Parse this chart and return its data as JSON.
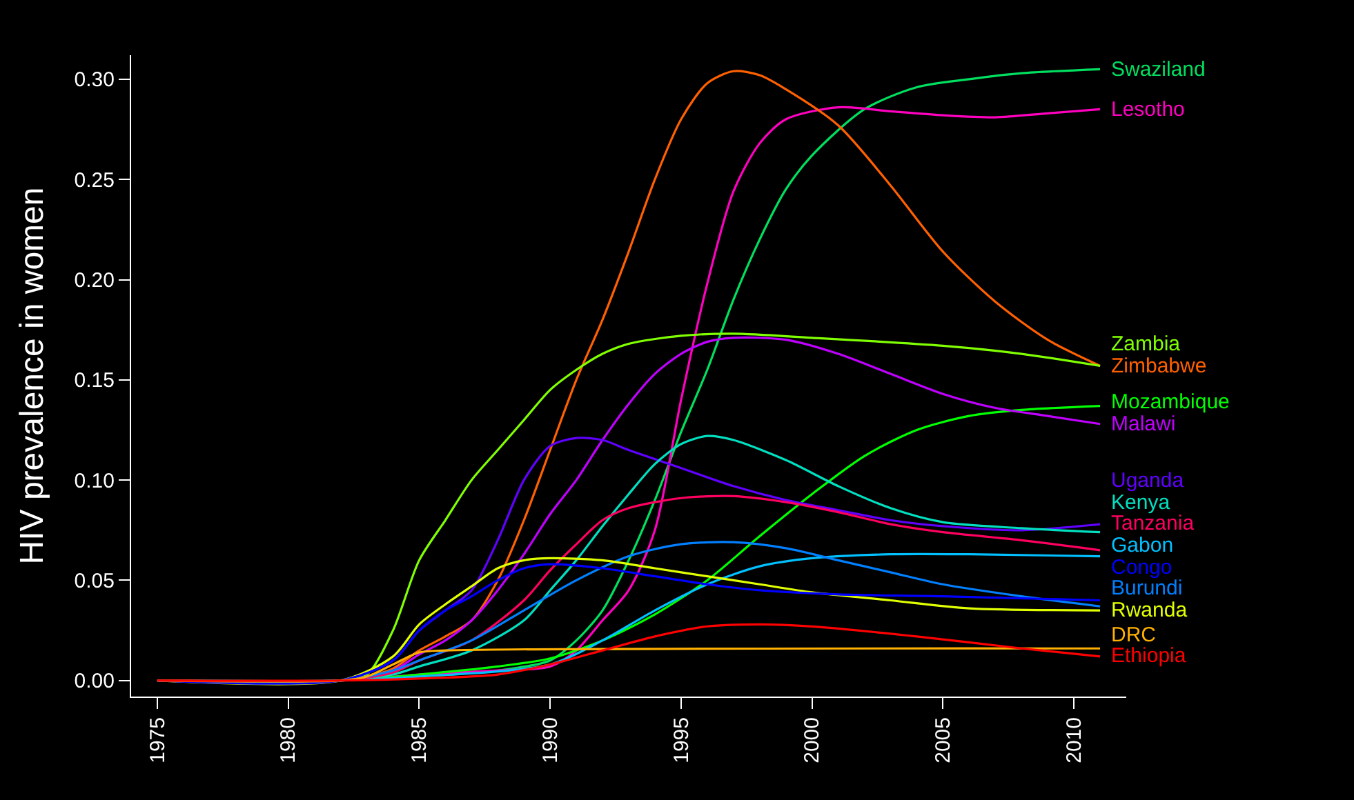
{
  "chart_data": {
    "type": "line",
    "ylabel": "HIV prevalence in women",
    "xlim": [
      1974,
      2012
    ],
    "ylim": [
      -0.008,
      0.312
    ],
    "xticks": [
      1975,
      1980,
      1985,
      1990,
      1995,
      2000,
      2005,
      2010
    ],
    "yticks": [
      {
        "value": 0,
        "label": "0.00"
      },
      {
        "value": 0.05,
        "label": "0.05"
      },
      {
        "value": 0.1,
        "label": "0.10"
      },
      {
        "value": 0.15,
        "label": "0.15"
      },
      {
        "value": 0.2,
        "label": "0.20"
      },
      {
        "value": 0.25,
        "label": "0.25"
      },
      {
        "value": 0.3,
        "label": "0.30"
      }
    ],
    "grid": false,
    "legend": false,
    "marker": "none",
    "line_style": "solid",
    "series": [
      {
        "name": "Swaziland",
        "color": "#00e060",
        "x": [
          1975,
          1982,
          1985,
          1988,
          1990,
          1991,
          1992,
          1993,
          1994,
          1995,
          1996,
          1997,
          1998,
          1999,
          2000,
          2002,
          2004,
          2006,
          2008,
          2011
        ],
        "values": [
          0,
          0,
          0.002,
          0.005,
          0.01,
          0.02,
          0.035,
          0.06,
          0.09,
          0.124,
          0.155,
          0.19,
          0.22,
          0.245,
          0.262,
          0.285,
          0.296,
          0.3,
          0.303,
          0.305
        ]
      },
      {
        "name": "Lesotho",
        "color": "#ff00c0",
        "x": [
          1975,
          1982,
          1985,
          1988,
          1990,
          1991,
          1992,
          1993,
          1994,
          1995,
          1996,
          1997,
          1998,
          1999,
          2001,
          2003,
          2005,
          2007,
          2009,
          2011
        ],
        "values": [
          0,
          0,
          0.003,
          0.005,
          0.007,
          0.015,
          0.03,
          0.045,
          0.075,
          0.14,
          0.198,
          0.244,
          0.268,
          0.28,
          0.286,
          0.284,
          0.282,
          0.281,
          0.283,
          0.285
        ]
      },
      {
        "name": "Zimbabwe",
        "color": "#ff6000",
        "x": [
          1975,
          1982,
          1983,
          1984,
          1985,
          1986,
          1987,
          1988,
          1989,
          1990,
          1991,
          1992,
          1993,
          1994,
          1995,
          1996,
          1997,
          1998,
          1999,
          2001,
          2003,
          2005,
          2007,
          2009,
          2011
        ],
        "values": [
          0,
          0,
          0.002,
          0.006,
          0.015,
          0.022,
          0.03,
          0.05,
          0.08,
          0.115,
          0.15,
          0.18,
          0.214,
          0.25,
          0.28,
          0.298,
          0.304,
          0.302,
          0.295,
          0.277,
          0.247,
          0.214,
          0.189,
          0.17,
          0.157
        ]
      },
      {
        "name": "Zambia",
        "color": "#80ff00",
        "x": [
          1975,
          1982,
          1983,
          1984,
          1985,
          1986,
          1987,
          1988,
          1989,
          1990,
          1991,
          1992,
          1993,
          1995,
          1997,
          2000,
          2005,
          2008,
          2011
        ],
        "values": [
          0,
          0,
          0.003,
          0.025,
          0.06,
          0.08,
          0.1,
          0.115,
          0.13,
          0.145,
          0.155,
          0.163,
          0.168,
          0.172,
          0.173,
          0.171,
          0.167,
          0.163,
          0.157
        ]
      },
      {
        "name": "Mozambique",
        "color": "#00ff00",
        "x": [
          1975,
          1982,
          1985,
          1988,
          1990,
          1992,
          1994,
          1996,
          1998,
          2000,
          2002,
          2004,
          2006,
          2008,
          2011
        ],
        "values": [
          0,
          0,
          0.003,
          0.007,
          0.011,
          0.02,
          0.033,
          0.05,
          0.072,
          0.093,
          0.112,
          0.125,
          0.132,
          0.135,
          0.137
        ]
      },
      {
        "name": "Malawi",
        "color": "#c000ff",
        "x": [
          1975,
          1982,
          1984,
          1985,
          1986,
          1987,
          1988,
          1989,
          1990,
          1991,
          1992,
          1993,
          1994,
          1995,
          1996,
          1997,
          1999,
          2001,
          2003,
          2005,
          2007,
          2009,
          2011
        ],
        "values": [
          0,
          0,
          0.005,
          0.013,
          0.02,
          0.03,
          0.045,
          0.063,
          0.083,
          0.1,
          0.12,
          0.138,
          0.153,
          0.163,
          0.169,
          0.171,
          0.17,
          0.163,
          0.153,
          0.143,
          0.136,
          0.132,
          0.128
        ]
      },
      {
        "name": "Uganda",
        "color": "#6000ff",
        "x": [
          1975,
          1982,
          1984,
          1985,
          1986,
          1987,
          1988,
          1989,
          1990,
          1991,
          1992,
          1993,
          1995,
          1997,
          1999,
          2001,
          2003,
          2005,
          2008,
          2011
        ],
        "values": [
          0,
          0,
          0.01,
          0.025,
          0.035,
          0.045,
          0.07,
          0.1,
          0.117,
          0.121,
          0.12,
          0.115,
          0.106,
          0.097,
          0.09,
          0.085,
          0.08,
          0.077,
          0.075,
          0.078
        ]
      },
      {
        "name": "Kenya",
        "color": "#00e0c0",
        "x": [
          1975,
          1982,
          1984,
          1985,
          1987,
          1989,
          1990,
          1991,
          1992,
          1993,
          1994,
          1995,
          1996,
          1997,
          1999,
          2001,
          2003,
          2005,
          2008,
          2011
        ],
        "values": [
          0,
          0,
          0.003,
          0.007,
          0.015,
          0.03,
          0.045,
          0.06,
          0.077,
          0.093,
          0.108,
          0.118,
          0.122,
          0.12,
          0.11,
          0.097,
          0.086,
          0.079,
          0.076,
          0.074
        ]
      },
      {
        "name": "Gabon",
        "color": "#00c0ff",
        "x": [
          1975,
          1982,
          1985,
          1990,
          1992,
          1994,
          1996,
          1998,
          2000,
          2003,
          2006,
          2011
        ],
        "values": [
          0,
          0,
          0.002,
          0.008,
          0.02,
          0.035,
          0.048,
          0.057,
          0.061,
          0.063,
          0.063,
          0.062
        ]
      },
      {
        "name": "Tanzania",
        "color": "#ff0060",
        "x": [
          1975,
          1982,
          1984,
          1985,
          1987,
          1989,
          1990,
          1991,
          1992,
          1993,
          1995,
          1997,
          1999,
          2001,
          2003,
          2005,
          2008,
          2011
        ],
        "values": [
          0,
          0,
          0.004,
          0.01,
          0.02,
          0.04,
          0.055,
          0.068,
          0.08,
          0.086,
          0.091,
          0.092,
          0.089,
          0.084,
          0.078,
          0.074,
          0.07,
          0.065
        ]
      },
      {
        "name": "Burundi",
        "color": "#0080ff",
        "x": [
          1975,
          1982,
          1984,
          1985,
          1987,
          1989,
          1991,
          1993,
          1995,
          1997,
          1999,
          2001,
          2003,
          2005,
          2008,
          2011
        ],
        "values": [
          0,
          0,
          0.005,
          0.01,
          0.02,
          0.035,
          0.05,
          0.062,
          0.068,
          0.069,
          0.066,
          0.06,
          0.054,
          0.048,
          0.042,
          0.037
        ]
      },
      {
        "name": "Rwanda",
        "color": "#e0ff00",
        "x": [
          1975,
          1982,
          1984,
          1985,
          1986,
          1987,
          1988,
          1989,
          1990,
          1992,
          1994,
          1996,
          1998,
          2000,
          2003,
          2006,
          2011
        ],
        "values": [
          0,
          0,
          0.012,
          0.028,
          0.038,
          0.047,
          0.056,
          0.06,
          0.061,
          0.06,
          0.056,
          0.052,
          0.048,
          0.044,
          0.04,
          0.036,
          0.035
        ]
      },
      {
        "name": "Congo",
        "color": "#0000ff",
        "x": [
          1975,
          1982,
          1984,
          1985,
          1986,
          1987,
          1988,
          1989,
          1990,
          1992,
          1994,
          1996,
          1998,
          2001,
          2005,
          2011
        ],
        "values": [
          0,
          0,
          0.01,
          0.025,
          0.035,
          0.042,
          0.05,
          0.056,
          0.058,
          0.056,
          0.052,
          0.048,
          0.045,
          0.043,
          0.042,
          0.04
        ]
      },
      {
        "name": "DRC",
        "color": "#ffb000",
        "x": [
          1975,
          1982,
          1983,
          1984,
          1985,
          1986,
          2011
        ],
        "values": [
          0,
          0,
          0.002,
          0.008,
          0.014,
          0.015,
          0.016
        ]
      },
      {
        "name": "Ethiopia",
        "color": "#ff0000",
        "x": [
          1975,
          1982,
          1985,
          1988,
          1990,
          1992,
          1994,
          1996,
          1998,
          2000,
          2004,
          2008,
          2011
        ],
        "values": [
          0,
          0,
          0.001,
          0.003,
          0.008,
          0.015,
          0.022,
          0.027,
          0.028,
          0.027,
          0.022,
          0.016,
          0.012
        ]
      }
    ]
  }
}
